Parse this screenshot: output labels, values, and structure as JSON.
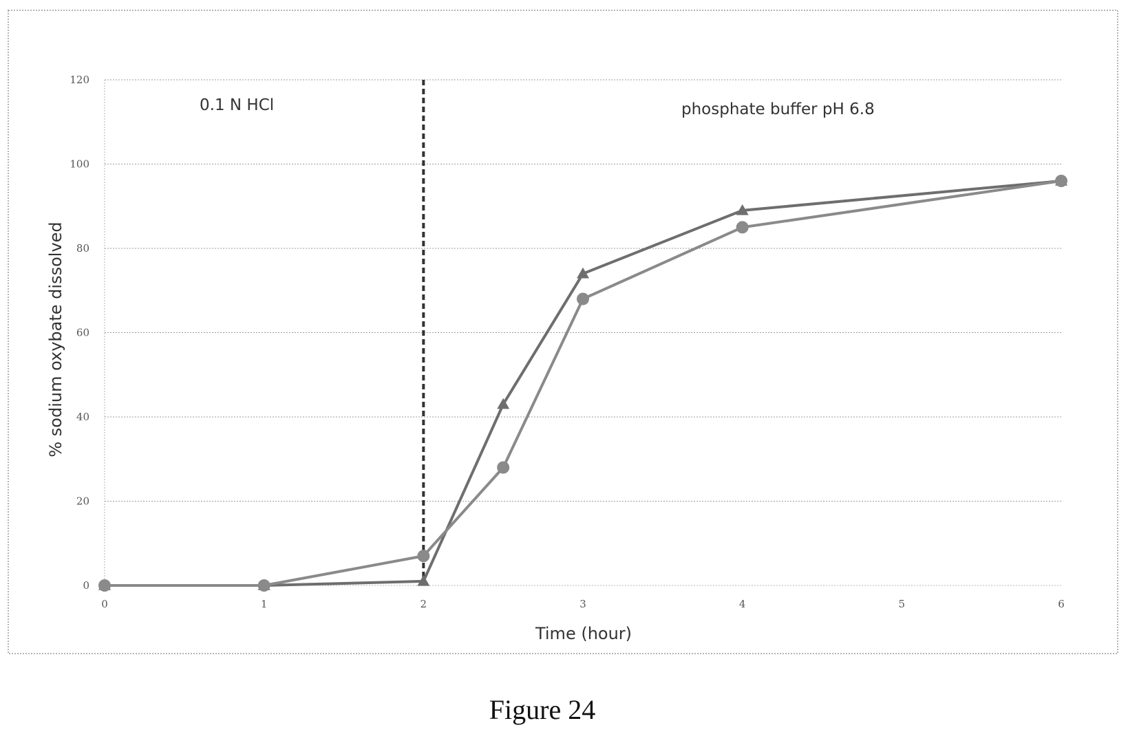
{
  "caption": "Figure 24",
  "chart_data": {
    "type": "line",
    "xlabel": "Time (hour)",
    "ylabel": "% sodium oxybate dissolved",
    "xlim": [
      0,
      6
    ],
    "ylim": [
      0,
      120
    ],
    "x_ticks": [
      "0",
      "1",
      "2",
      "3",
      "4",
      "5",
      "6"
    ],
    "y_ticks": [
      "0",
      "20",
      "40",
      "60",
      "80",
      "100",
      "120"
    ],
    "grid": "horizontal dotted",
    "annotations": [
      {
        "text": "0.1 N HCl",
        "region": "left"
      },
      {
        "text": "phosphate buffer pH 6.8",
        "region": "right"
      }
    ],
    "divider": {
      "x": 2,
      "style": "dashed"
    },
    "series": [
      {
        "marker": "triangle",
        "color": "#6e6e6e",
        "x": [
          0,
          1,
          2,
          2.5,
          3,
          4,
          6
        ],
        "y": [
          0,
          0,
          1,
          43,
          74,
          89,
          96
        ]
      },
      {
        "marker": "circle",
        "color": "#8a8a8a",
        "x": [
          0,
          1,
          2,
          2.5,
          3,
          4,
          6
        ],
        "y": [
          0,
          0,
          7,
          28,
          68,
          85,
          96
        ]
      }
    ]
  }
}
